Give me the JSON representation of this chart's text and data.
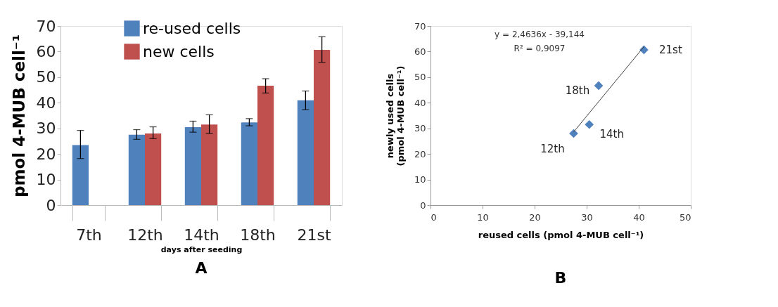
{
  "chart_data": [
    {
      "type": "bar",
      "title": "A",
      "xlabel": "days after seeding",
      "ylabel": "pmol  4-MUB cell⁻¹",
      "categories": [
        "7th",
        "12th",
        "14th",
        "18th",
        "21st"
      ],
      "series": [
        {
          "name": "re-used cells",
          "color": "#4f81bd",
          "values": [
            23.5,
            27.5,
            30.5,
            32.3,
            41.0
          ],
          "errors": [
            [
              18.2,
              29.2
            ],
            [
              25.7,
              29.5
            ],
            [
              28.5,
              32.8
            ],
            [
              31.0,
              33.8
            ],
            [
              37.3,
              44.6
            ]
          ]
        },
        {
          "name": "new cells",
          "color": "#c0504d",
          "values": [
            null,
            28.0,
            31.5,
            46.7,
            60.7
          ],
          "errors": [
            null,
            [
              26.0,
              30.6
            ],
            [
              28.0,
              35.3
            ],
            [
              43.8,
              49.4
            ],
            [
              55.8,
              65.8
            ]
          ]
        }
      ],
      "ylim": [
        0,
        70
      ],
      "yticks": [
        0,
        10,
        20,
        30,
        40,
        50,
        60,
        70
      ],
      "grid": false,
      "legend": "top left"
    },
    {
      "type": "scatter",
      "title": "B",
      "xlabel": "reused cells (pmol 4-MUB cell⁻¹)",
      "ylabel": "newly used cells\n(pmol 4-MUB cell⁻¹)",
      "series": [
        {
          "color": "#4f81bd",
          "x": [
            27.5,
            30.5,
            32.3,
            41.0
          ],
          "values": [
            28.0,
            31.5,
            46.7,
            60.7
          ],
          "marker": "diamond"
        },
        {
          "type": "line",
          "color": "#404040",
          "x": [
            27.5,
            41.0
          ],
          "values": [
            28.6,
            61.9
          ]
        }
      ],
      "annotations": [
        "y = 2,4636x - 39,144",
        "R² = 0,9097",
        {
          "text": "12th",
          "x": 27.5,
          "y": 28.0
        },
        {
          "text": "14th",
          "x": 30.5,
          "y": 31.5
        },
        {
          "text": "18th",
          "x": 32.3,
          "y": 46.7
        },
        {
          "text": "21st",
          "x": 41.0,
          "y": 60.7
        }
      ],
      "xlim": [
        0,
        50
      ],
      "xticks": [
        0,
        10,
        20,
        30,
        40,
        50
      ],
      "ylim": [
        0,
        70
      ],
      "yticks": [
        0,
        10,
        20,
        30,
        40,
        50,
        60,
        70
      ],
      "grid": false
    }
  ]
}
